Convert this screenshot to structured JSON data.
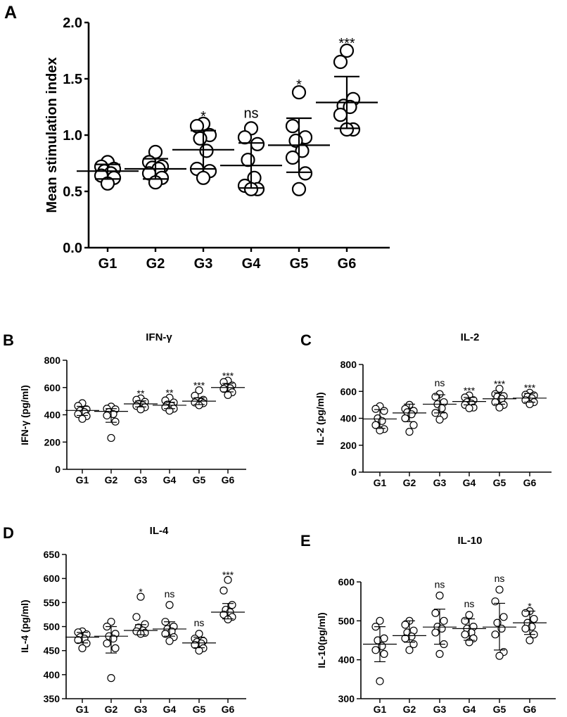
{
  "figure": {
    "panels": [
      "A",
      "B",
      "C",
      "D",
      "E"
    ]
  },
  "chart_data": [
    {
      "id": "A",
      "type": "scatter",
      "title": "",
      "panel_letter": "A",
      "xlabel": "",
      "ylabel": "Mean stimulation index",
      "categories": [
        "G1",
        "G2",
        "G3",
        "G4",
        "G5",
        "G6"
      ],
      "ylim": [
        0,
        2
      ],
      "yticks": [
        0.0,
        0.5,
        1.0,
        1.5,
        2.0
      ],
      "ytick_labels": [
        "0.0",
        "0.5",
        "1.0",
        "1.5",
        "2.0"
      ],
      "points": [
        [
          0.76,
          0.72,
          0.7,
          0.68,
          0.66,
          0.64,
          0.62,
          0.57
        ],
        [
          0.85,
          0.76,
          0.72,
          0.71,
          0.7,
          0.66,
          0.62,
          0.58
        ],
        [
          1.1,
          1.08,
          1.0,
          0.97,
          0.86,
          0.7,
          0.68,
          0.62
        ],
        [
          1.06,
          0.98,
          0.92,
          0.78,
          0.62,
          0.55,
          0.52,
          0.52
        ],
        [
          1.38,
          1.08,
          0.98,
          0.95,
          0.86,
          0.8,
          0.66,
          0.52
        ],
        [
          1.75,
          1.65,
          1.32,
          1.26,
          1.25,
          1.18,
          1.05,
          1.05
        ]
      ],
      "mean": [
        0.68,
        0.7,
        0.87,
        0.73,
        0.91,
        1.29
      ],
      "sd_low": [
        0.61,
        0.61,
        0.7,
        0.53,
        0.67,
        1.06
      ],
      "sd_high": [
        0.74,
        0.79,
        1.04,
        0.93,
        1.15,
        1.52
      ],
      "significance": [
        "",
        "",
        "*",
        "ns",
        "*",
        "***"
      ]
    },
    {
      "id": "B",
      "type": "scatter",
      "title": "IFN-γ",
      "panel_letter": "B",
      "xlabel": "",
      "ylabel": "IFN-γ (pg/ml)",
      "categories": [
        "G1",
        "G2",
        "G3",
        "G4",
        "G5",
        "G6"
      ],
      "ylim": [
        0,
        800
      ],
      "yticks": [
        0,
        200,
        400,
        600,
        800
      ],
      "ytick_labels": [
        "0",
        "200",
        "400",
        "600",
        "800"
      ],
      "points": [
        [
          485,
          465,
          440,
          430,
          420,
          405,
          390,
          370
        ],
        [
          460,
          445,
          440,
          420,
          405,
          395,
          350,
          230
        ],
        [
          520,
          510,
          495,
          480,
          470,
          465,
          455,
          440
        ],
        [
          525,
          505,
          490,
          475,
          465,
          455,
          445,
          430
        ],
        [
          580,
          540,
          510,
          500,
          495,
          490,
          485,
          470
        ],
        [
          650,
          640,
          615,
          600,
          595,
          590,
          565,
          545
        ]
      ],
      "mean": [
        432,
        425,
        480,
        470,
        500,
        600
      ],
      "sd_low": [
        395,
        345,
        458,
        445,
        475,
        568
      ],
      "sd_high": [
        462,
        445,
        502,
        492,
        525,
        630
      ],
      "significance": [
        "",
        "",
        "**",
        "**",
        "***",
        "***"
      ]
    },
    {
      "id": "C",
      "type": "scatter",
      "title": "IL-2",
      "panel_letter": "C",
      "xlabel": "",
      "ylabel": "IL-2 (pg/ml)",
      "categories": [
        "G1",
        "G2",
        "G3",
        "G4",
        "G5",
        "G6"
      ],
      "ylim": [
        0,
        800
      ],
      "yticks": [
        0,
        200,
        400,
        600,
        800
      ],
      "ytick_labels": [
        "0",
        "200",
        "400",
        "600",
        "800"
      ],
      "points": [
        [
          490,
          470,
          455,
          400,
          380,
          350,
          320,
          310
        ],
        [
          500,
          470,
          455,
          445,
          430,
          400,
          350,
          300
        ],
        [
          580,
          560,
          520,
          505,
          475,
          440,
          420,
          390
        ],
        [
          570,
          555,
          535,
          520,
          510,
          500,
          480,
          475
        ],
        [
          620,
          580,
          565,
          560,
          545,
          520,
          500,
          480
        ],
        [
          590,
          575,
          570,
          560,
          550,
          535,
          520,
          505
        ]
      ],
      "mean": [
        395,
        440,
        505,
        525,
        545,
        550
      ],
      "sd_low": [
        325,
        375,
        440,
        500,
        505,
        520
      ],
      "sd_high": [
        465,
        505,
        575,
        555,
        590,
        585
      ],
      "significance": [
        "",
        "",
        "ns",
        "***",
        "***",
        "***"
      ]
    },
    {
      "id": "D",
      "type": "scatter",
      "title": "IL-4",
      "panel_letter": "D",
      "xlabel": "",
      "ylabel": "IL-4 (pg/ml)",
      "categories": [
        "G1",
        "G2",
        "G3",
        "G4",
        "G5",
        "G6"
      ],
      "ylim": [
        350,
        650
      ],
      "yticks": [
        350,
        400,
        450,
        500,
        550,
        600,
        650
      ],
      "ytick_labels": [
        "350",
        "400",
        "450",
        "500",
        "550",
        "600",
        "650"
      ],
      "points": [
        [
          490,
          488,
          484,
          478,
          475,
          472,
          465,
          455
        ],
        [
          510,
          500,
          485,
          480,
          475,
          465,
          455,
          393
        ],
        [
          562,
          520,
          505,
          498,
          492,
          490,
          487,
          485
        ],
        [
          545,
          510,
          500,
          495,
          490,
          485,
          478,
          470
        ],
        [
          485,
          475,
          470,
          468,
          465,
          462,
          455,
          450
        ],
        [
          597,
          575,
          545,
          535,
          530,
          525,
          520,
          515
        ]
      ],
      "mean": [
        478,
        480,
        492,
        495,
        466,
        530
      ],
      "sd_low": [
        466,
        445,
        483,
        480,
        456,
        516
      ],
      "sd_high": [
        488,
        500,
        504,
        510,
        478,
        548
      ],
      "significance": [
        "",
        "",
        "*",
        "ns",
        "ns",
        "***"
      ]
    },
    {
      "id": "E",
      "type": "scatter",
      "title": "IL-10",
      "panel_letter": "E",
      "xlabel": "",
      "ylabel": "IL-10(pg/ml)",
      "categories": [
        "G1",
        "G2",
        "G3",
        "G4",
        "G5",
        "G6"
      ],
      "ylim": [
        300,
        600
      ],
      "yticks": [
        300,
        400,
        500,
        600
      ],
      "ytick_labels": [
        "300",
        "400",
        "500",
        "600"
      ],
      "points": [
        [
          500,
          485,
          455,
          450,
          435,
          425,
          415,
          345
        ],
        [
          500,
          490,
          475,
          470,
          460,
          455,
          440,
          425
        ],
        [
          565,
          520,
          500,
          485,
          480,
          470,
          440,
          415
        ],
        [
          515,
          500,
          485,
          480,
          470,
          465,
          455,
          445
        ],
        [
          580,
          550,
          510,
          495,
          480,
          465,
          420,
          410
        ],
        [
          525,
          520,
          505,
          495,
          485,
          480,
          465,
          450
        ]
      ],
      "mean": [
        440,
        462,
        484,
        480,
        484,
        495
      ],
      "sd_low": [
        395,
        445,
        440,
        450,
        425,
        465
      ],
      "sd_high": [
        485,
        500,
        530,
        505,
        545,
        525
      ],
      "significance": [
        "",
        "",
        "ns",
        "ns",
        "ns",
        "*"
      ]
    }
  ]
}
